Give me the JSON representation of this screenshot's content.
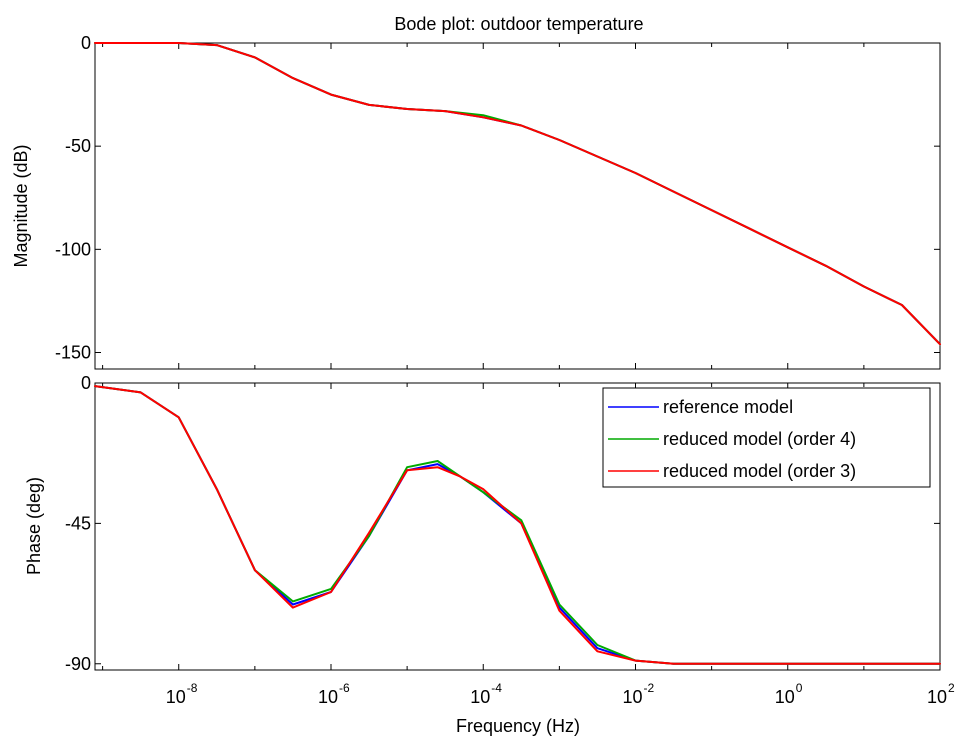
{
  "title": "Bode plot: outdoor temperature",
  "xlabel": "Frequency  (Hz)",
  "colors": {
    "reference": "#0000ff",
    "order4": "#00aa00",
    "order3": "#ff0000",
    "axis": "#000000",
    "background": "#ffffff"
  },
  "chart_data": [
    {
      "type": "line",
      "panel": "magnitude",
      "title": "Bode plot: outdoor temperature",
      "xlabel": "",
      "ylabel": "Magnitude (dB)",
      "xscale": "log",
      "xlim_log10": [
        -9.1,
        2
      ],
      "ylim": [
        -158,
        0
      ],
      "yticks": [
        0,
        -50,
        -100,
        -150
      ],
      "xticks_log10": [
        -8,
        -6,
        -4,
        -2,
        0,
        2
      ],
      "grid": false,
      "series": [
        {
          "name": "reference model",
          "color": "#0000ff",
          "x_log10": [
            -9.1,
            -8.0,
            -7.5,
            -7.0,
            -6.5,
            -6.0,
            -5.5,
            -5.0,
            -4.5,
            -4.0,
            -3.5,
            -3.0,
            -2.5,
            -2.0,
            -1.5,
            -1.0,
            -0.5,
            0.0,
            0.5,
            1.0,
            1.5,
            2.0
          ],
          "y": [
            0,
            0,
            -1,
            -7,
            -17,
            -25,
            -30,
            -32,
            -33,
            -36,
            -40,
            -47,
            -55,
            -63,
            -72,
            -81,
            -90,
            -99,
            -108,
            -118,
            -127,
            -146
          ]
        },
        {
          "name": "reduced model (order 4)",
          "color": "#00aa00",
          "x_log10": [
            -9.1,
            -8.0,
            -7.5,
            -7.0,
            -6.5,
            -6.0,
            -5.5,
            -5.0,
            -4.5,
            -4.0,
            -3.5,
            -3.0,
            -2.5,
            -2.0,
            -1.5,
            -1.0,
            -0.5,
            0.0,
            0.5,
            1.0,
            1.5,
            2.0
          ],
          "y": [
            0,
            0,
            -1,
            -7,
            -17,
            -25,
            -30,
            -32,
            -33,
            -35,
            -40,
            -47,
            -55,
            -63,
            -72,
            -81,
            -90,
            -99,
            -108,
            -118,
            -127,
            -146
          ]
        },
        {
          "name": "reduced model (order 3)",
          "color": "#ff0000",
          "x_log10": [
            -9.1,
            -8.0,
            -7.5,
            -7.0,
            -6.5,
            -6.0,
            -5.5,
            -5.0,
            -4.5,
            -4.0,
            -3.5,
            -3.0,
            -2.5,
            -2.0,
            -1.5,
            -1.0,
            -0.5,
            0.0,
            0.5,
            1.0,
            1.5,
            2.0
          ],
          "y": [
            0,
            0,
            -1,
            -7,
            -17,
            -25,
            -30,
            -32,
            -33,
            -36,
            -40,
            -47,
            -55,
            -63,
            -72,
            -81,
            -90,
            -99,
            -108,
            -118,
            -127,
            -146
          ]
        }
      ]
    },
    {
      "type": "line",
      "panel": "phase",
      "title": "",
      "xlabel": "Frequency  (Hz)",
      "ylabel": "Phase (deg)",
      "xscale": "log",
      "xlim_log10": [
        -9.1,
        2
      ],
      "ylim": [
        -92,
        0
      ],
      "yticks": [
        0,
        -45,
        -90
      ],
      "xticks_log10": [
        -8,
        -6,
        -4,
        -2,
        0,
        2
      ],
      "grid": false,
      "legend": "top-right",
      "series": [
        {
          "name": "reference model",
          "color": "#0000ff",
          "x_log10": [
            -9.1,
            -8.5,
            -8.0,
            -7.5,
            -7.0,
            -6.5,
            -6.0,
            -5.5,
            -5.0,
            -4.6,
            -4.3,
            -4.0,
            -3.5,
            -3.0,
            -2.5,
            -2.0,
            -1.5,
            -1.0,
            -0.5,
            0.0,
            1.0,
            2.0
          ],
          "y": [
            -1,
            -3,
            -11,
            -34,
            -60,
            -71,
            -67,
            -49,
            -28,
            -26,
            -30,
            -35,
            -45,
            -72,
            -85,
            -89,
            -90,
            -90,
            -90,
            -90,
            -90,
            -90
          ]
        },
        {
          "name": "reduced model (order 4)",
          "color": "#00aa00",
          "x_log10": [
            -9.1,
            -8.5,
            -8.0,
            -7.5,
            -7.0,
            -6.5,
            -6.0,
            -5.5,
            -5.0,
            -4.6,
            -4.3,
            -4.0,
            -3.5,
            -3.0,
            -2.5,
            -2.0,
            -1.5,
            -1.0,
            -0.5,
            0.0,
            1.0,
            2.0
          ],
          "y": [
            -1,
            -3,
            -11,
            -34,
            -60,
            -70,
            -66,
            -49,
            -27,
            -25,
            -30,
            -35,
            -44,
            -71,
            -84,
            -89,
            -90,
            -90,
            -90,
            -90,
            -90,
            -90
          ]
        },
        {
          "name": "reduced model (order 3)",
          "color": "#ff0000",
          "x_log10": [
            -9.1,
            -8.5,
            -8.0,
            -7.5,
            -7.0,
            -6.5,
            -6.0,
            -5.5,
            -5.0,
            -4.6,
            -4.3,
            -4.0,
            -3.5,
            -3.0,
            -2.5,
            -2.0,
            -1.5,
            -1.0,
            -0.5,
            0.0,
            1.0,
            2.0
          ],
          "y": [
            -1,
            -3,
            -11,
            -34,
            -60,
            -72,
            -67,
            -48,
            -28,
            -27,
            -30,
            -34,
            -45,
            -73,
            -86,
            -89,
            -90,
            -90,
            -90,
            -90,
            -90,
            -90
          ]
        }
      ]
    }
  ]
}
